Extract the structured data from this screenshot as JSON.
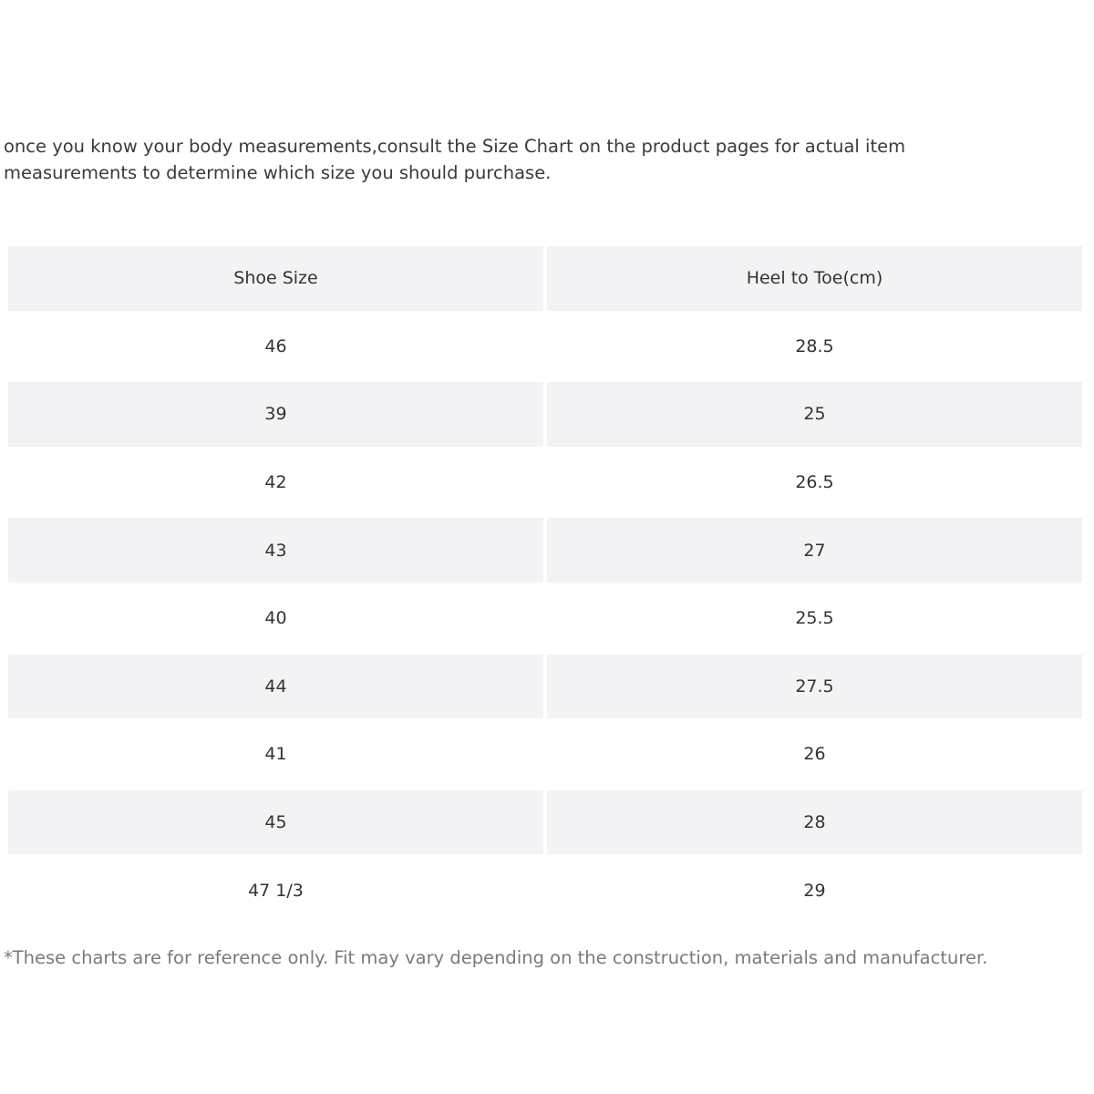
{
  "intro": "once you know your body measurements,consult the Size Chart on the product pages for actual item measurements to determine which size you should purchase.",
  "table": {
    "headers": [
      "Shoe Size",
      "Heel to Toe(cm)"
    ],
    "rows": [
      [
        "46",
        "28.5"
      ],
      [
        "39",
        "25"
      ],
      [
        "42",
        "26.5"
      ],
      [
        "43",
        "27"
      ],
      [
        "40",
        "25.5"
      ],
      [
        "44",
        "27.5"
      ],
      [
        "41",
        "26"
      ],
      [
        "45",
        "28"
      ],
      [
        "47 1/3",
        "29"
      ]
    ]
  },
  "footnote": "*These charts are for reference only. Fit may vary depending on the construction, materials and manufacturer.",
  "colors": {
    "row_shade": "#f3f3f5",
    "text": "#333333",
    "footnote": "#7a7a7a"
  }
}
